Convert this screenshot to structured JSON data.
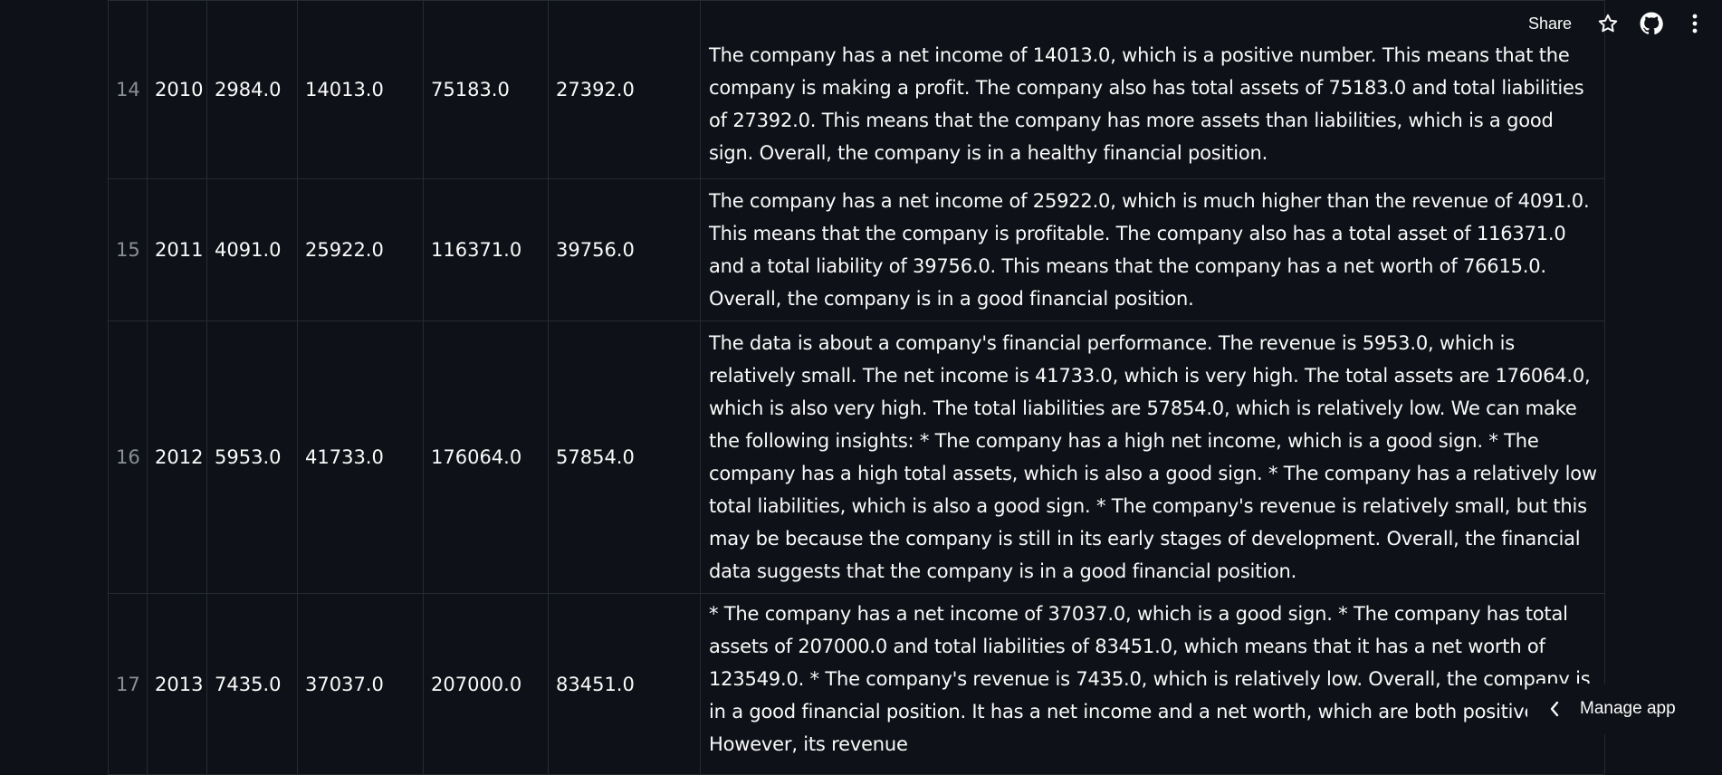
{
  "header": {
    "share_label": "Share",
    "icons": [
      "star-icon",
      "github-icon",
      "more-vertical-icon"
    ]
  },
  "table": {
    "rows": [
      {
        "index": "14",
        "year": "2010",
        "revenue": "2984.0",
        "net_income": "14013.0",
        "total_assets": "75183.0",
        "total_liabilities": "27392.0",
        "insight": "The company has a net income of 14013.0, which is a positive number. This means that the company is making a profit. The company also has total assets of 75183.0 and total liabilities of 27392.0. This means that the company has more assets than liabilities, which is a good sign. Overall, the company is in a healthy financial position."
      },
      {
        "index": "15",
        "year": "2011",
        "revenue": "4091.0",
        "net_income": "25922.0",
        "total_assets": "116371.0",
        "total_liabilities": "39756.0",
        "insight": "The company has a net income of 25922.0, which is much higher than the revenue of 4091.0. This means that the company is profitable. The company also has a total asset of 116371.0 and a total liability of 39756.0. This means that the company has a net worth of 76615.0. Overall, the company is in a good financial position."
      },
      {
        "index": "16",
        "year": "2012",
        "revenue": "5953.0",
        "net_income": "41733.0",
        "total_assets": "176064.0",
        "total_liabilities": "57854.0",
        "insight": "The data is about a company's financial performance. The revenue is 5953.0, which is relatively small. The net income is 41733.0, which is very high. The total assets are 176064.0, which is also very high. The total liabilities are 57854.0, which is relatively low. We can make the following insights: * The company has a high net income, which is a good sign. * The company has a high total assets, which is also a good sign. * The company has a relatively low total liabilities, which is also a good sign. * The company's revenue is relatively small, but this may be because the company is still in its early stages of development. Overall, the financial data suggests that the company is in a good financial position."
      },
      {
        "index": "17",
        "year": "2013",
        "revenue": "7435.0",
        "net_income": "37037.0",
        "total_assets": "207000.0",
        "total_liabilities": "83451.0",
        "insight": "* The company has a net income of 37037.0, which is a good sign. * The company has total assets of 207000.0 and total liabilities of 83451.0, which means that it has a net worth of 123549.0. * The company's revenue is 7435.0, which is relatively low. Overall, the company is in a good financial position. It has a net income and a net worth, which are both positive. However, its revenue"
      }
    ]
  },
  "footer": {
    "manage_label": "Manage app"
  }
}
